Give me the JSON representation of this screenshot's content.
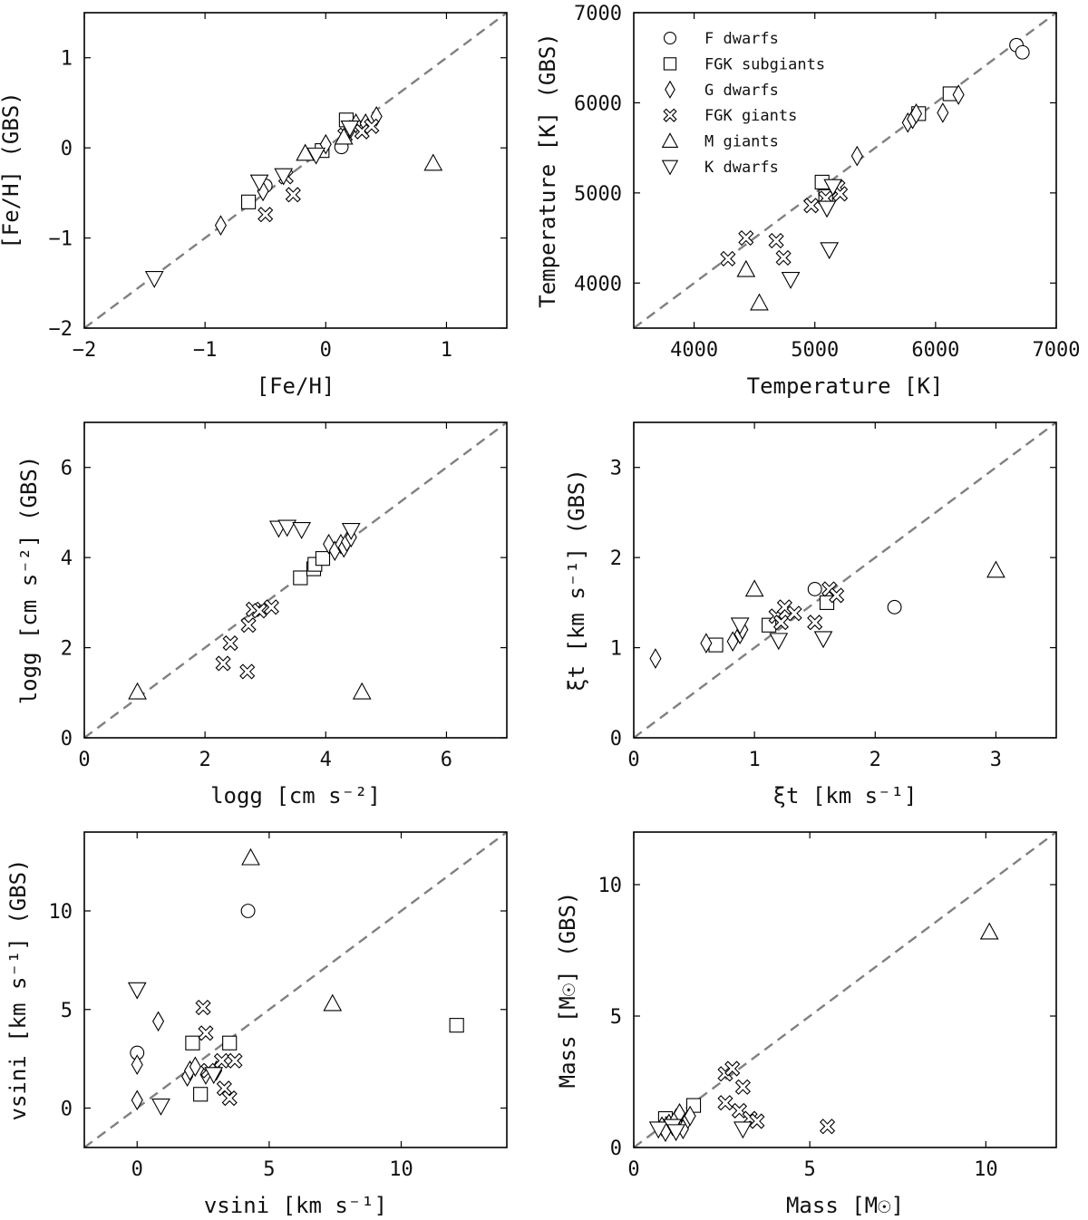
{
  "legend": [
    {
      "label": "F dwarfs",
      "icon": "circle"
    },
    {
      "label": "FGK subgiants",
      "icon": "square"
    },
    {
      "label": "G dwarfs",
      "icon": "diamond"
    },
    {
      "label": "FGK giants",
      "icon": "cross"
    },
    {
      "label": "M giants",
      "icon": "triangle-up"
    },
    {
      "label": "K dwarfs",
      "icon": "triangle-down"
    }
  ],
  "chart_data": [
    {
      "type": "scatter",
      "xlabel": "[Fe/H]",
      "ylabel": "[Fe/H]  (GBS)",
      "xlim": [
        -2,
        1.5
      ],
      "ylim": [
        -2,
        1.5
      ],
      "xticks": [
        -2,
        -1,
        0,
        1
      ],
      "yticks": [
        -2,
        -1,
        0,
        1
      ],
      "xticklabels": [
        "−2",
        "−1",
        "0",
        "1"
      ],
      "yticklabels": [
        "−2",
        "−1",
        "0",
        "1"
      ],
      "diagonal": true,
      "series": [
        {
          "marker": "circle",
          "points": [
            [
              0.13,
              0.01
            ],
            [
              -0.5,
              -0.42
            ]
          ]
        },
        {
          "marker": "square",
          "points": [
            [
              -0.64,
              -0.6
            ],
            [
              0.17,
              0.31
            ],
            [
              -0.03,
              -0.03
            ]
          ]
        },
        {
          "marker": "diamond",
          "points": [
            [
              -0.87,
              -0.86
            ],
            [
              -0.52,
              -0.48
            ],
            [
              0.0,
              0.04
            ],
            [
              0.2,
              0.2
            ],
            [
              0.25,
              0.27
            ],
            [
              0.33,
              0.27
            ],
            [
              0.42,
              0.35
            ]
          ]
        },
        {
          "marker": "cross",
          "points": [
            [
              -0.5,
              -0.74
            ],
            [
              -0.27,
              -0.52
            ],
            [
              -0.33,
              -0.32
            ],
            [
              0.16,
              0.14
            ],
            [
              0.3,
              0.18
            ],
            [
              0.38,
              0.24
            ]
          ]
        },
        {
          "marker": "triangle-up",
          "points": [
            [
              0.89,
              -0.17
            ],
            [
              -0.17,
              -0.06
            ],
            [
              0.15,
              0.12
            ]
          ]
        },
        {
          "marker": "triangle-down",
          "points": [
            [
              -1.42,
              -1.45
            ],
            [
              -0.55,
              -0.38
            ],
            [
              -0.35,
              -0.31
            ],
            [
              -0.08,
              -0.08
            ],
            [
              0.2,
              0.22
            ]
          ]
        }
      ]
    },
    {
      "type": "scatter",
      "xlabel": "Temperature [K]",
      "ylabel": "Temperature [K]  (GBS)",
      "xlim": [
        3500,
        7000
      ],
      "ylim": [
        3500,
        7000
      ],
      "xticks": [
        4000,
        5000,
        6000,
        7000
      ],
      "yticks": [
        4000,
        5000,
        6000,
        7000
      ],
      "xticklabels": [
        "4000",
        "5000",
        "6000",
        "7000"
      ],
      "yticklabels": [
        "4000",
        "5000",
        "6000",
        "7000"
      ],
      "diagonal": true,
      "legend_position": "upper-left",
      "series": [
        {
          "marker": "circle",
          "points": [
            [
              6670,
              6640
            ],
            [
              6720,
              6560
            ]
          ]
        },
        {
          "marker": "square",
          "points": [
            [
              5060,
              5120
            ],
            [
              5090,
              4960
            ],
            [
              5860,
              5880
            ],
            [
              6120,
              6100
            ]
          ]
        },
        {
          "marker": "diamond",
          "points": [
            [
              5350,
              5410
            ],
            [
              5770,
              5780
            ],
            [
              5810,
              5820
            ],
            [
              5840,
              5880
            ],
            [
              6060,
              5890
            ],
            [
              6190,
              6090
            ]
          ]
        },
        {
          "marker": "cross",
          "points": [
            [
              4280,
              4270
            ],
            [
              4430,
              4500
            ],
            [
              4680,
              4470
            ],
            [
              4740,
              4280
            ],
            [
              4970,
              4860
            ],
            [
              5090,
              4940
            ],
            [
              5190,
              5060
            ],
            [
              5210,
              4990
            ]
          ]
        },
        {
          "marker": "triangle-up",
          "points": [
            [
              4430,
              4150
            ],
            [
              4540,
              3780
            ]
          ]
        },
        {
          "marker": "triangle-down",
          "points": [
            [
              4800,
              4040
            ],
            [
              5100,
              4830
            ],
            [
              5120,
              4370
            ],
            [
              5150,
              5070
            ]
          ]
        }
      ]
    },
    {
      "type": "scatter",
      "xlabel": "logg [cm s⁻²]",
      "ylabel": "logg [cm s⁻²]  (GBS)",
      "xlim": [
        0,
        7
      ],
      "ylim": [
        0,
        7
      ],
      "xticks": [
        0,
        2,
        4,
        6
      ],
      "yticks": [
        0,
        2,
        4,
        6
      ],
      "xticklabels": [
        "0",
        "2",
        "4",
        "6"
      ],
      "yticklabels": [
        "0",
        "2",
        "4",
        "6"
      ],
      "diagonal": true,
      "series": [
        {
          "marker": "square",
          "points": [
            [
              3.58,
              3.55
            ],
            [
              3.8,
              3.75
            ],
            [
              3.82,
              3.85
            ],
            [
              3.95,
              3.98
            ]
          ]
        },
        {
          "marker": "diamond",
          "points": [
            [
              4.05,
              4.3
            ],
            [
              4.15,
              4.15
            ],
            [
              4.25,
              4.3
            ],
            [
              4.3,
              4.22
            ],
            [
              4.35,
              4.35
            ],
            [
              4.42,
              4.45
            ]
          ]
        },
        {
          "marker": "cross",
          "points": [
            [
              2.3,
              1.65
            ],
            [
              2.42,
              2.1
            ],
            [
              2.7,
              1.47
            ],
            [
              2.72,
              2.5
            ],
            [
              2.8,
              2.85
            ],
            [
              2.9,
              2.82
            ],
            [
              3.1,
              2.9
            ]
          ]
        },
        {
          "marker": "triangle-up",
          "points": [
            [
              0.88,
              1.02
            ],
            [
              4.6,
              1.02
            ]
          ]
        },
        {
          "marker": "triangle-down",
          "points": [
            [
              3.22,
              4.65
            ],
            [
              3.36,
              4.67
            ],
            [
              3.6,
              4.62
            ],
            [
              4.42,
              4.6
            ]
          ]
        }
      ]
    },
    {
      "type": "scatter",
      "xlabel": "ξt  [km s⁻¹]",
      "ylabel": "ξt  [km s⁻¹]  (GBS)",
      "xlim": [
        0,
        3.5
      ],
      "ylim": [
        0,
        3.5
      ],
      "xticks": [
        0,
        1,
        2,
        3
      ],
      "yticks": [
        0,
        1,
        2,
        3
      ],
      "xticklabels": [
        "0",
        "1",
        "2",
        "3"
      ],
      "yticklabels": [
        "0",
        "1",
        "2",
        "3"
      ],
      "diagonal": true,
      "series": [
        {
          "marker": "circle",
          "points": [
            [
              1.5,
              1.65
            ],
            [
              2.16,
              1.45
            ]
          ]
        },
        {
          "marker": "square",
          "points": [
            [
              0.68,
              1.03
            ],
            [
              1.12,
              1.25
            ],
            [
              1.6,
              1.5
            ]
          ]
        },
        {
          "marker": "diamond",
          "points": [
            [
              0.18,
              0.88
            ],
            [
              0.6,
              1.05
            ],
            [
              0.82,
              1.07
            ],
            [
              0.88,
              1.15
            ],
            [
              0.9,
              1.2
            ]
          ]
        },
        {
          "marker": "cross",
          "points": [
            [
              1.18,
              1.35
            ],
            [
              1.22,
              1.28
            ],
            [
              1.25,
              1.45
            ],
            [
              1.33,
              1.38
            ],
            [
              1.5,
              1.28
            ],
            [
              1.62,
              1.65
            ],
            [
              1.68,
              1.58
            ]
          ]
        },
        {
          "marker": "triangle-up",
          "points": [
            [
              1.0,
              1.65
            ],
            [
              3.0,
              1.86
            ]
          ]
        },
        {
          "marker": "triangle-down",
          "points": [
            [
              0.88,
              1.25
            ],
            [
              1.2,
              1.08
            ],
            [
              1.57,
              1.1
            ]
          ]
        }
      ]
    },
    {
      "type": "scatter",
      "xlabel": "vsini [km s⁻¹]",
      "ylabel": "vsini [km s⁻¹]  (GBS)",
      "xlim": [
        -2,
        14
      ],
      "ylim": [
        -2,
        14
      ],
      "xticks": [
        0,
        5,
        10
      ],
      "yticks": [
        0,
        5,
        10
      ],
      "xticklabels": [
        "0",
        "5",
        "10"
      ],
      "yticklabels": [
        "0",
        "5",
        "10"
      ],
      "diagonal": true,
      "series": [
        {
          "marker": "circle",
          "points": [
            [
              4.2,
              10.0
            ],
            [
              0.0,
              2.8
            ]
          ]
        },
        {
          "marker": "square",
          "points": [
            [
              2.1,
              3.3
            ],
            [
              2.4,
              0.7
            ],
            [
              3.5,
              3.3
            ],
            [
              12.1,
              4.2
            ]
          ]
        },
        {
          "marker": "diamond",
          "points": [
            [
              0.0,
              0.4
            ],
            [
              0.0,
              2.2
            ],
            [
              0.8,
              4.4
            ],
            [
              1.9,
              1.6
            ],
            [
              2.0,
              1.9
            ],
            [
              2.2,
              2.1
            ],
            [
              2.6,
              1.7
            ],
            [
              3.0,
              1.9
            ]
          ]
        },
        {
          "marker": "cross",
          "points": [
            [
              2.5,
              5.1
            ],
            [
              2.6,
              3.8
            ],
            [
              2.7,
              1.9
            ],
            [
              3.2,
              2.4
            ],
            [
              3.3,
              1.0
            ],
            [
              3.5,
              0.5
            ],
            [
              3.7,
              2.4
            ]
          ]
        },
        {
          "marker": "triangle-up",
          "points": [
            [
              4.3,
              12.7
            ],
            [
              7.4,
              5.3
            ]
          ]
        },
        {
          "marker": "triangle-down",
          "points": [
            [
              0.0,
              6.0
            ],
            [
              0.9,
              0.1
            ],
            [
              2.9,
              1.7
            ]
          ]
        }
      ]
    },
    {
      "type": "scatter",
      "xlabel": "Mass [M☉]",
      "ylabel": "Mass [M☉]  (GBS)",
      "xlim": [
        0,
        12
      ],
      "ylim": [
        0,
        12
      ],
      "xticks": [
        0,
        5,
        10
      ],
      "yticks": [
        0,
        5,
        10
      ],
      "xticklabels": [
        "0",
        "5",
        "10"
      ],
      "yticklabels": [
        "0",
        "5",
        "10"
      ],
      "diagonal": true,
      "series": [
        {
          "marker": "square",
          "points": [
            [
              0.9,
              1.1
            ],
            [
              1.7,
              1.6
            ],
            [
              1.1,
              0.9
            ]
          ]
        },
        {
          "marker": "diamond",
          "points": [
            [
              0.8,
              0.8
            ],
            [
              1.0,
              0.9
            ],
            [
              1.2,
              1.1
            ],
            [
              1.3,
              1.3
            ],
            [
              1.5,
              1.0
            ],
            [
              1.6,
              1.2
            ],
            [
              1.4,
              0.7
            ],
            [
              0.9,
              0.6
            ]
          ]
        },
        {
          "marker": "cross",
          "points": [
            [
              2.6,
              2.8
            ],
            [
              2.8,
              3.0
            ],
            [
              3.1,
              2.3
            ],
            [
              2.6,
              1.7
            ],
            [
              3.0,
              1.4
            ],
            [
              3.3,
              1.1
            ],
            [
              3.5,
              1.0
            ],
            [
              5.5,
              0.8
            ]
          ]
        },
        {
          "marker": "triangle-up",
          "points": [
            [
              10.1,
              8.2
            ]
          ]
        },
        {
          "marker": "triangle-down",
          "points": [
            [
              0.7,
              0.7
            ],
            [
              1.1,
              0.8
            ],
            [
              1.2,
              0.6
            ],
            [
              3.1,
              0.7
            ]
          ]
        }
      ]
    }
  ]
}
